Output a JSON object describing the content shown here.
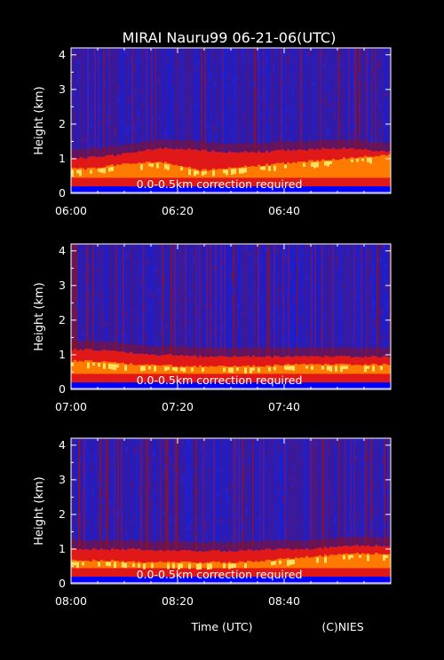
{
  "title": "MIRAI Nauru99 06-21-06(UTC)",
  "footer": {
    "xlabel": "Time (UTC)",
    "credit": "(C)NIES"
  },
  "colors": {
    "background": "#000000",
    "noise_low": "#1e1ecc",
    "noise_mid": "#3a1a9a",
    "signal_low": "#8a1020",
    "signal_mid": "#e01818",
    "signal_high": "#ff7a00",
    "signal_peak": "#ffe060",
    "ground_band": "#0000ff"
  },
  "chart_data": [
    {
      "type": "heatmap",
      "ylabel": "Height (km)",
      "ylim": [
        0,
        4.2
      ],
      "yticks": [
        "0",
        "1",
        "2",
        "3",
        "4"
      ],
      "xticks": [
        "06:00",
        "06:20",
        "06:40"
      ],
      "xlim_minutes": [
        0,
        60
      ],
      "annotation": "0.0-0.5km correction required",
      "cloud_base_km": [
        0.6,
        0.6,
        0.7,
        0.75,
        0.8,
        0.7,
        0.55,
        0.6,
        0.65,
        0.7,
        0.75,
        0.8,
        0.85,
        0.9,
        0.95,
        1.0
      ],
      "cloud_top_km": [
        1.0,
        1.05,
        1.1,
        1.2,
        1.3,
        1.3,
        1.25,
        1.2,
        1.2,
        1.2,
        1.25,
        1.25,
        1.3,
        1.3,
        1.25,
        1.2
      ]
    },
    {
      "type": "heatmap",
      "ylabel": "Height (km)",
      "ylim": [
        0,
        4.2
      ],
      "yticks": [
        "0",
        "1",
        "2",
        "3",
        "4"
      ],
      "xticks": [
        "07:00",
        "07:20",
        "07:40"
      ],
      "xlim_minutes": [
        0,
        60
      ],
      "annotation": "0.0-0.5km correction required",
      "cloud_base_km": [
        0.7,
        0.7,
        0.65,
        0.6,
        0.6,
        0.55,
        0.55,
        0.55,
        0.55,
        0.55,
        0.6,
        0.6,
        0.6,
        0.6,
        0.6,
        0.6
      ],
      "cloud_top_km": [
        1.15,
        1.15,
        1.1,
        1.05,
        1.0,
        1.0,
        0.95,
        0.95,
        0.95,
        0.95,
        0.95,
        0.95,
        0.95,
        0.95,
        0.95,
        0.95
      ]
    },
    {
      "type": "heatmap",
      "ylabel": "Height (km)",
      "ylim": [
        0,
        4.2
      ],
      "yticks": [
        "0",
        "1",
        "2",
        "3",
        "4"
      ],
      "xticks": [
        "08:00",
        "08:20",
        "08:40"
      ],
      "xlim_minutes": [
        0,
        60
      ],
      "annotation": "0.0-0.5km correction required",
      "cloud_base_km": [
        0.55,
        0.55,
        0.55,
        0.5,
        0.5,
        0.5,
        0.5,
        0.5,
        0.5,
        0.55,
        0.6,
        0.65,
        0.7,
        0.75,
        0.75,
        0.75
      ],
      "cloud_top_km": [
        1.0,
        1.0,
        1.0,
        1.0,
        0.95,
        0.95,
        0.95,
        0.95,
        0.95,
        1.0,
        1.0,
        1.0,
        1.05,
        1.1,
        1.1,
        1.1
      ]
    }
  ]
}
